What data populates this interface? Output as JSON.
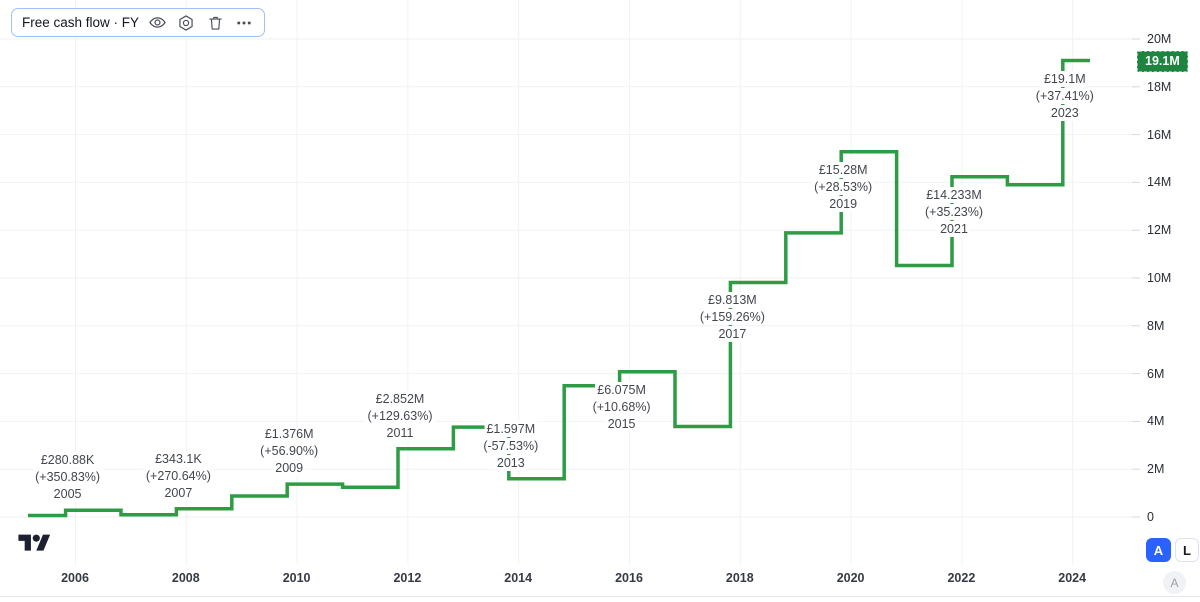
{
  "toolbar": {
    "title": "Free cash flow · FY",
    "icons": [
      "eye-icon",
      "settings-icon",
      "trash-icon",
      "more-icon"
    ]
  },
  "chart_data": {
    "type": "line",
    "step": true,
    "title": "Free cash flow · FY",
    "currency": "GBP",
    "years": [
      2004,
      2005,
      2006,
      2007,
      2008,
      2009,
      2010,
      2011,
      2012,
      2013,
      2014,
      2015,
      2016,
      2017,
      2018,
      2019,
      2020,
      2021,
      2022,
      2023
    ],
    "values_millions": [
      0.062,
      0.281,
      0.093,
      0.343,
      0.877,
      1.376,
      1.242,
      2.852,
      3.76,
      1.597,
      5.489,
      6.075,
      3.785,
      9.813,
      11.888,
      15.28,
      10.525,
      14.233,
      13.9,
      19.1
    ],
    "ylim": [
      0,
      20
    ],
    "y_ticks": [
      {
        "v": 0,
        "label": "0"
      },
      {
        "v": 2,
        "label": "2M"
      },
      {
        "v": 4,
        "label": "4M"
      },
      {
        "v": 6,
        "label": "6M"
      },
      {
        "v": 8,
        "label": "8M"
      },
      {
        "v": 10,
        "label": "10M"
      },
      {
        "v": 12,
        "label": "12M"
      },
      {
        "v": 14,
        "label": "14M"
      },
      {
        "v": 16,
        "label": "16M"
      },
      {
        "v": 18,
        "label": "18M"
      },
      {
        "v": 20,
        "label": "20M"
      }
    ],
    "x_ticks": [
      2006,
      2008,
      2010,
      2012,
      2014,
      2016,
      2018,
      2020,
      2022,
      2024
    ],
    "annotations": [
      {
        "year": 2005,
        "value": "£280.88K",
        "pct": "(+350.83%)",
        "side": "above"
      },
      {
        "year": 2007,
        "value": "£343.1K",
        "pct": "(+270.64%)",
        "side": "above"
      },
      {
        "year": 2009,
        "value": "£1.376M",
        "pct": "(+56.90%)",
        "side": "above"
      },
      {
        "year": 2011,
        "value": "£2.852M",
        "pct": "(+129.63%)",
        "side": "above"
      },
      {
        "year": 2013,
        "value": "£1.597M",
        "pct": "(-57.53%)",
        "side": "above"
      },
      {
        "year": 2015,
        "value": "£6.075M",
        "pct": "(+10.68%)",
        "side": "below"
      },
      {
        "year": 2017,
        "value": "£9.813M",
        "pct": "(+159.26%)",
        "side": "below"
      },
      {
        "year": 2019,
        "value": "£15.28M",
        "pct": "(+28.53%)",
        "side": "below"
      },
      {
        "year": 2021,
        "value": "£14.233M",
        "pct": "(+35.23%)",
        "side": "below"
      },
      {
        "year": 2023,
        "value": "£19.1M",
        "pct": "(+37.41%)",
        "side": "below"
      }
    ],
    "last_price_label": "19.1M",
    "line_color": "#2E9C45",
    "badge_color": "#1E8540",
    "grid_color": "#f0f2f6",
    "legend_position": "top-left"
  },
  "scale_controls": {
    "auto_label": "A",
    "log_label": "L",
    "corner_label": "A"
  }
}
